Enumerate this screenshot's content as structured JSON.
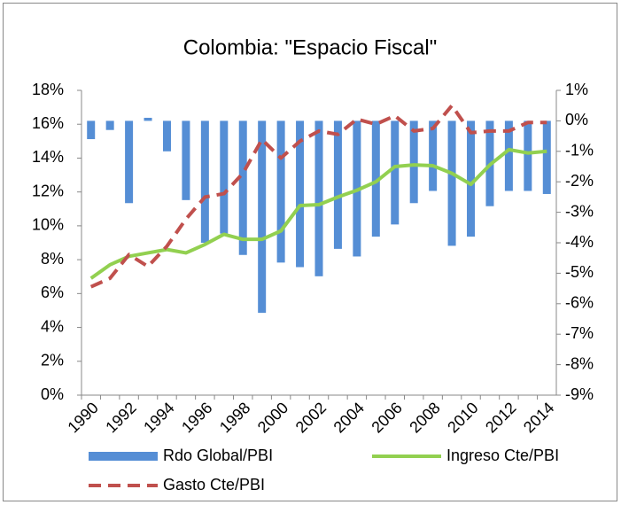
{
  "chart_data": {
    "type": "bar-line",
    "title": "Colombia: \"Espacio Fiscal\"",
    "categories": [
      "1990",
      null,
      "1992",
      null,
      "1994",
      null,
      "1996",
      null,
      "1998",
      null,
      "2000",
      null,
      "2002",
      null,
      "2004",
      null,
      "2006",
      null,
      "2008",
      null,
      "2010",
      null,
      "2012",
      null,
      "2014"
    ],
    "series": [
      {
        "name": "Rdo Global/PBI",
        "type": "bar",
        "axis": "y2",
        "color": "#558ed5",
        "values": [
          -0.6,
          -0.3,
          -2.7,
          0.1,
          -1.0,
          -2.6,
          -4.0,
          -3.7,
          -4.4,
          -6.3,
          -4.65,
          -4.8,
          -5.1,
          -4.2,
          -4.45,
          -3.8,
          -3.4,
          -2.7,
          -2.3,
          -4.1,
          -3.8,
          -2.8,
          -2.3,
          -2.3,
          -2.4
        ]
      },
      {
        "name": "Ingreso Cte/PBI",
        "type": "line",
        "axis": "y",
        "color": "#92d050",
        "dash": false,
        "values": [
          6.9,
          7.7,
          8.2,
          8.4,
          8.6,
          8.4,
          8.9,
          9.5,
          9.2,
          9.2,
          9.7,
          11.2,
          11.25,
          11.7,
          12.1,
          12.6,
          13.5,
          13.6,
          13.55,
          13.1,
          12.45,
          13.6,
          14.5,
          14.3,
          14.4
        ]
      },
      {
        "name": "Gasto Cte/PBI",
        "type": "line",
        "axis": "y",
        "color": "#c0504d",
        "dash": true,
        "values": [
          6.4,
          6.9,
          8.3,
          7.6,
          8.8,
          10.4,
          11.7,
          11.9,
          13.1,
          15.1,
          14.0,
          15.0,
          15.6,
          15.4,
          16.3,
          16.0,
          16.5,
          15.6,
          15.75,
          17.1,
          15.5,
          15.6,
          15.6,
          16.1,
          16.1
        ]
      }
    ],
    "ylim": [
      0,
      18
    ],
    "yticks": [
      {
        "value": 0,
        "label": "0%"
      },
      {
        "value": 2,
        "label": "2%"
      },
      {
        "value": 4,
        "label": "4%"
      },
      {
        "value": 6,
        "label": "6%"
      },
      {
        "value": 8,
        "label": "8%"
      },
      {
        "value": 10,
        "label": "10%"
      },
      {
        "value": 12,
        "label": "12%"
      },
      {
        "value": 14,
        "label": "14%"
      },
      {
        "value": 16,
        "label": "16%"
      },
      {
        "value": 18,
        "label": "18%"
      }
    ],
    "y2lim": [
      -9,
      1
    ],
    "y2ticks": [
      {
        "value": -9,
        "label": "-9%"
      },
      {
        "value": -8,
        "label": "-8%"
      },
      {
        "value": -7,
        "label": "-7%"
      },
      {
        "value": -6,
        "label": "-6%"
      },
      {
        "value": -5,
        "label": "-5%"
      },
      {
        "value": -4,
        "label": "-4%"
      },
      {
        "value": -3,
        "label": "-3%"
      },
      {
        "value": -2,
        "label": "-2%"
      },
      {
        "value": -1,
        "label": "-1%"
      },
      {
        "value": 0,
        "label": "0%"
      },
      {
        "value": 1,
        "label": "1%"
      }
    ],
    "grid": false,
    "legend": "bottom"
  }
}
